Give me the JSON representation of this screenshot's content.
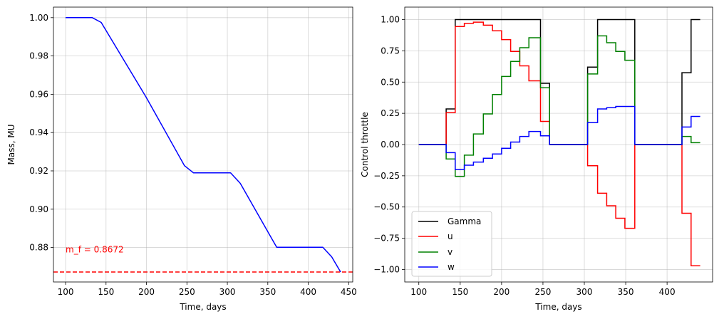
{
  "chart_data": [
    {
      "type": "line",
      "title": "",
      "xlabel": "Time, days",
      "ylabel": "Mass, MU",
      "xlim": [
        85,
        455
      ],
      "ylim": [
        0.862,
        1.0055
      ],
      "xticks": [
        100,
        150,
        200,
        250,
        300,
        350,
        400,
        450
      ],
      "yticks": [
        0.88,
        0.9,
        0.92,
        0.94,
        0.96,
        0.98,
        1.0
      ],
      "ytick_labels": [
        "0.88",
        "0.90",
        "0.92",
        "0.94",
        "0.96",
        "0.98",
        "1.00"
      ],
      "grid": true,
      "series": [
        {
          "name": "mass",
          "color": "#0000ff",
          "style": "solid",
          "x": [
            100,
            133,
            144,
            200,
            247,
            258,
            304,
            316,
            361,
            418,
            429,
            440
          ],
          "y": [
            1.0,
            1.0,
            0.9975,
            0.9582,
            0.9227,
            0.919,
            0.919,
            0.9135,
            0.8801,
            0.8801,
            0.8751,
            0.8672
          ]
        }
      ],
      "hline": {
        "y": 0.8672,
        "color": "#ff0000",
        "style": "dashed"
      },
      "annotation": {
        "text": "m_f = 0.8672",
        "x": 100,
        "y": 0.8775,
        "color": "#ff0000"
      }
    },
    {
      "type": "line",
      "title": "",
      "xlabel": "Time, days",
      "ylabel": "Control throttle",
      "xlim": [
        83,
        455
      ],
      "ylim": [
        -1.1,
        1.1
      ],
      "xticks": [
        100,
        150,
        200,
        250,
        300,
        350,
        400
      ],
      "yticks": [
        -1.0,
        -0.75,
        -0.5,
        -0.25,
        0.0,
        0.25,
        0.5,
        0.75,
        1.0
      ],
      "ytick_labels": [
        "−1.00",
        "−0.75",
        "−0.50",
        "−0.25",
        "0.00",
        "0.25",
        "0.50",
        "0.75",
        "1.00"
      ],
      "grid": true,
      "legend": {
        "location": "lower-left",
        "entries": [
          "Gamma",
          "u",
          "v",
          "w"
        ]
      },
      "x": [
        100,
        133,
        144,
        155,
        166,
        178,
        189,
        200,
        211,
        222,
        233,
        247,
        258,
        304,
        316,
        327,
        338,
        349,
        361,
        418,
        429,
        440
      ],
      "series": [
        {
          "name": "Gamma",
          "color": "#000000",
          "values": [
            0,
            0.285,
            1,
            1,
            1,
            1,
            1,
            1,
            1,
            1,
            1,
            0.49,
            0,
            0.62,
            1,
            1,
            1,
            1,
            0,
            0.575,
            1,
            1
          ]
        },
        {
          "name": "u",
          "color": "#ff0000",
          "values": [
            0,
            0.255,
            0.945,
            0.97,
            0.98,
            0.955,
            0.91,
            0.84,
            0.745,
            0.63,
            0.51,
            0.185,
            0,
            -0.17,
            -0.39,
            -0.49,
            -0.59,
            -0.67,
            0,
            -0.55,
            -0.97,
            -0.97
          ]
        },
        {
          "name": "v",
          "color": "#008000",
          "values": [
            0,
            -0.115,
            -0.255,
            -0.085,
            0.085,
            0.245,
            0.4,
            0.545,
            0.665,
            0.775,
            0.855,
            0.455,
            0,
            0.565,
            0.87,
            0.815,
            0.745,
            0.675,
            0,
            0.065,
            0.015,
            0.015
          ]
        },
        {
          "name": "w",
          "color": "#0000ff",
          "values": [
            0,
            -0.065,
            -0.2,
            -0.165,
            -0.14,
            -0.11,
            -0.075,
            -0.03,
            0.02,
            0.065,
            0.105,
            0.07,
            0,
            0.175,
            0.285,
            0.295,
            0.305,
            0.305,
            0,
            0.14,
            0.225,
            0.225
          ]
        }
      ]
    }
  ]
}
